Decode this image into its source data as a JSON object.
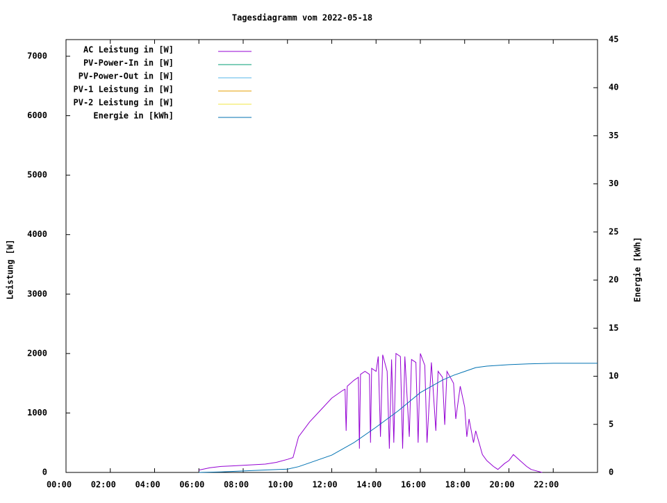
{
  "chart_data": {
    "type": "line",
    "title": "Tagesdiagramm vom 2022-05-18",
    "ylabel": "Leistung [W]",
    "y2label": "Energie [kWh]",
    "xlim": [
      0,
      24
    ],
    "xticks": [
      {
        "value": 0,
        "label": "00:00"
      },
      {
        "value": 2,
        "label": "02:00"
      },
      {
        "value": 4,
        "label": "04:00"
      },
      {
        "value": 6,
        "label": "06:00"
      },
      {
        "value": 8,
        "label": "08:00"
      },
      {
        "value": 10,
        "label": "10:00"
      },
      {
        "value": 12,
        "label": "12:00"
      },
      {
        "value": 14,
        "label": "14:00"
      },
      {
        "value": 16,
        "label": "16:00"
      },
      {
        "value": 18,
        "label": "18:00"
      },
      {
        "value": 20,
        "label": "20:00"
      },
      {
        "value": 22,
        "label": "22:00"
      }
    ],
    "ylim": [
      0,
      7280
    ],
    "yticks": [
      0,
      1000,
      2000,
      3000,
      4000,
      5000,
      6000,
      7000
    ],
    "y2lim": [
      0,
      45
    ],
    "y2ticks": [
      0,
      5,
      10,
      15,
      20,
      25,
      30,
      35,
      40,
      45
    ],
    "legend": "top-left",
    "series": [
      {
        "name": "AC Leistung in [W]",
        "color": "#9400d3",
        "axis": "y",
        "x": [
          6.0,
          6.5,
          7.0,
          7.5,
          8.0,
          8.5,
          9.0,
          9.5,
          10.0,
          10.25,
          10.5,
          11.0,
          11.5,
          12.0,
          12.5,
          12.6,
          12.65,
          12.7,
          13.0,
          13.2,
          13.25,
          13.3,
          13.5,
          13.7,
          13.75,
          13.8,
          14.0,
          14.1,
          14.2,
          14.3,
          14.5,
          14.6,
          14.7,
          14.8,
          14.9,
          15.1,
          15.2,
          15.3,
          15.5,
          15.6,
          15.8,
          15.9,
          16.0,
          16.2,
          16.3,
          16.5,
          16.7,
          16.8,
          17.0,
          17.1,
          17.2,
          17.5,
          17.6,
          17.8,
          18.0,
          18.1,
          18.2,
          18.4,
          18.5,
          18.8,
          19.0,
          19.3,
          19.5,
          19.8,
          20.0,
          20.2,
          20.5,
          20.8,
          21.0,
          21.3,
          21.5
        ],
        "values": [
          40,
          80,
          100,
          110,
          120,
          130,
          140,
          170,
          220,
          250,
          600,
          850,
          1050,
          1250,
          1380,
          1400,
          700,
          1450,
          1550,
          1600,
          400,
          1650,
          1700,
          1650,
          500,
          1750,
          1700,
          1950,
          600,
          1980,
          1700,
          400,
          1900,
          500,
          2000,
          1950,
          400,
          1950,
          600,
          1900,
          1850,
          500,
          2000,
          1800,
          500,
          1850,
          700,
          1700,
          1600,
          800,
          1700,
          1500,
          900,
          1450,
          1100,
          600,
          900,
          500,
          700,
          300,
          200,
          100,
          50,
          150,
          200,
          300,
          200,
          100,
          50,
          20,
          0
        ]
      },
      {
        "name": "PV-Power-In in [W]",
        "color": "#009e73",
        "axis": "y",
        "x": [],
        "values": []
      },
      {
        "name": "PV-Power-Out in [W]",
        "color": "#56b4e9",
        "axis": "y",
        "x": [],
        "values": []
      },
      {
        "name": "PV-1 Leistung in [W]",
        "color": "#e69f00",
        "axis": "y",
        "x": [],
        "values": []
      },
      {
        "name": "PV-2 Leistung in [W]",
        "color": "#f0e442",
        "axis": "y",
        "x": [],
        "values": []
      },
      {
        "name": "Energie in [kWh]",
        "color": "#0072b2",
        "axis": "y2",
        "x": [
          6,
          7,
          8,
          9,
          10,
          10.5,
          11,
          12,
          13,
          14,
          15,
          16,
          17,
          17.5,
          18,
          18.5,
          19,
          20,
          21,
          22,
          24
        ],
        "values": [
          0,
          0.05,
          0.15,
          0.25,
          0.35,
          0.6,
          1.0,
          1.8,
          3.1,
          4.7,
          6.4,
          8.3,
          9.6,
          10.1,
          10.5,
          10.9,
          11.05,
          11.2,
          11.3,
          11.35,
          11.35
        ]
      }
    ]
  }
}
